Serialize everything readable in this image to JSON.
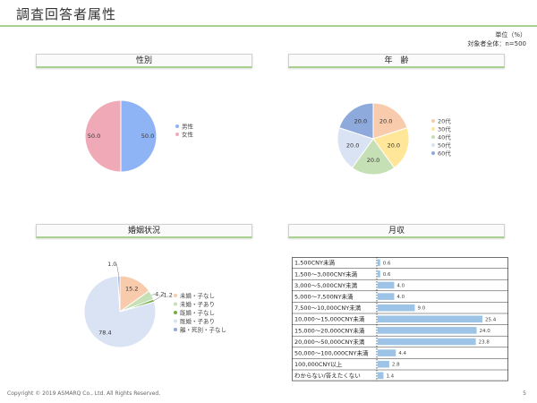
{
  "page": {
    "title": "調査回答者属性",
    "unit_line1": "単位（%）",
    "unit_line2": "対象者全体：n=500",
    "footer": "Copyright © 2019 ASMARQ Co., Ltd. All Rights Reserved.",
    "page_number": "5"
  },
  "colors": {
    "header_rule": "#a9d08e",
    "bar": "#9dc3e6"
  },
  "chart_data": [
    {
      "type": "pie",
      "title": "性別",
      "labels": [
        "男性",
        "女性"
      ],
      "values": [
        50.0,
        50.0
      ],
      "value_labels": [
        "50.0",
        "50.0"
      ],
      "colors": [
        "#8fb4f5",
        "#f0aab7"
      ],
      "legend_position": "right"
    },
    {
      "type": "pie",
      "title": "年　齢",
      "labels": [
        "20代",
        "30代",
        "40代",
        "50代",
        "60代"
      ],
      "values": [
        20.0,
        20.0,
        20.0,
        20.0,
        20.0
      ],
      "value_labels": [
        "20.0",
        "20.0",
        "20.0",
        "20.0",
        "20.0"
      ],
      "colors": [
        "#f8cbad",
        "#ffe699",
        "#c5e0b4",
        "#dae3f3",
        "#8ea9db"
      ],
      "legend_position": "right"
    },
    {
      "type": "pie",
      "title": "婚姻状況",
      "labels": [
        "未婚・子なし",
        "未婚・子あり",
        "既婚・子なし",
        "既婚・子あり",
        "離・死別・子なし"
      ],
      "values": [
        15.2,
        4.2,
        1.2,
        78.4,
        1.0
      ],
      "value_labels": [
        "15.2",
        "4.2",
        "1.2",
        "78.4",
        "1.0"
      ],
      "colors": [
        "#f8cbad",
        "#c5e0b4",
        "#70ad47",
        "#dae3f3",
        "#8ea9db"
      ],
      "legend_position": "right"
    },
    {
      "type": "bar",
      "orientation": "horizontal",
      "title": "月収",
      "categories": [
        "1,500CNY未満",
        "1,500～3,000CNY未満",
        "3,000～5,000CNY未満",
        "5,000～7,500NY未満",
        "7,500～10,000CNY未満",
        "10,000～15,000CNY未満",
        "15,000～20,000CNY未満",
        "20,000～50,000CNY未満",
        "50,000～100,000CNY未満",
        "100,000CNY以上",
        "わからない/答えたくない"
      ],
      "values": [
        0.6,
        0.6,
        4.0,
        4.0,
        9.0,
        25.4,
        24.0,
        23.8,
        4.4,
        2.8,
        1.4
      ],
      "value_labels": [
        "0.6",
        "0.6",
        "4.0",
        "4.0",
        "9.0",
        "25.4",
        "24.0",
        "23.8",
        "4.4",
        "2.8",
        "1.4"
      ]
    }
  ]
}
